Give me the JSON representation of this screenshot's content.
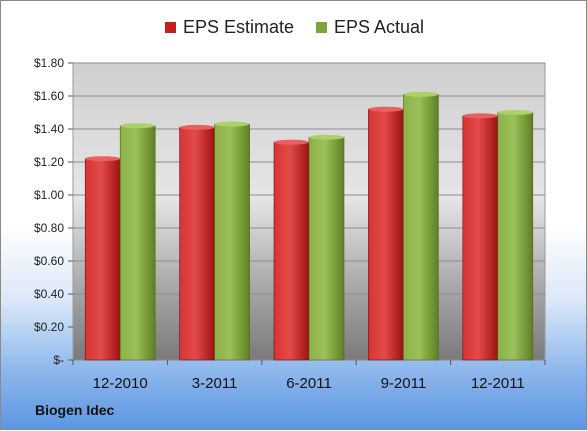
{
  "chart_data": {
    "type": "bar",
    "categories": [
      "12-2010",
      "3-2011",
      "6-2011",
      "9-2011",
      "12-2011"
    ],
    "series": [
      {
        "name": "EPS Estimate",
        "values": [
          1.22,
          1.41,
          1.32,
          1.52,
          1.48
        ],
        "color": "#c41e1e"
      },
      {
        "name": "EPS Actual",
        "values": [
          1.42,
          1.43,
          1.35,
          1.61,
          1.5
        ],
        "color": "#7ea43c"
      }
    ],
    "ylim": [
      0,
      1.8
    ],
    "yticks": [
      0,
      0.2,
      0.4,
      0.6,
      0.8,
      1.0,
      1.2,
      1.4,
      1.6,
      1.8
    ],
    "ytick_labels": [
      "$-",
      "$0.20",
      "$0.40",
      "$0.60",
      "$0.80",
      "$1.00",
      "$1.20",
      "$1.40",
      "$1.60",
      "$1.80"
    ],
    "grid": true,
    "legend_position": "top"
  },
  "footer": {
    "company": "Biogen Idec"
  }
}
